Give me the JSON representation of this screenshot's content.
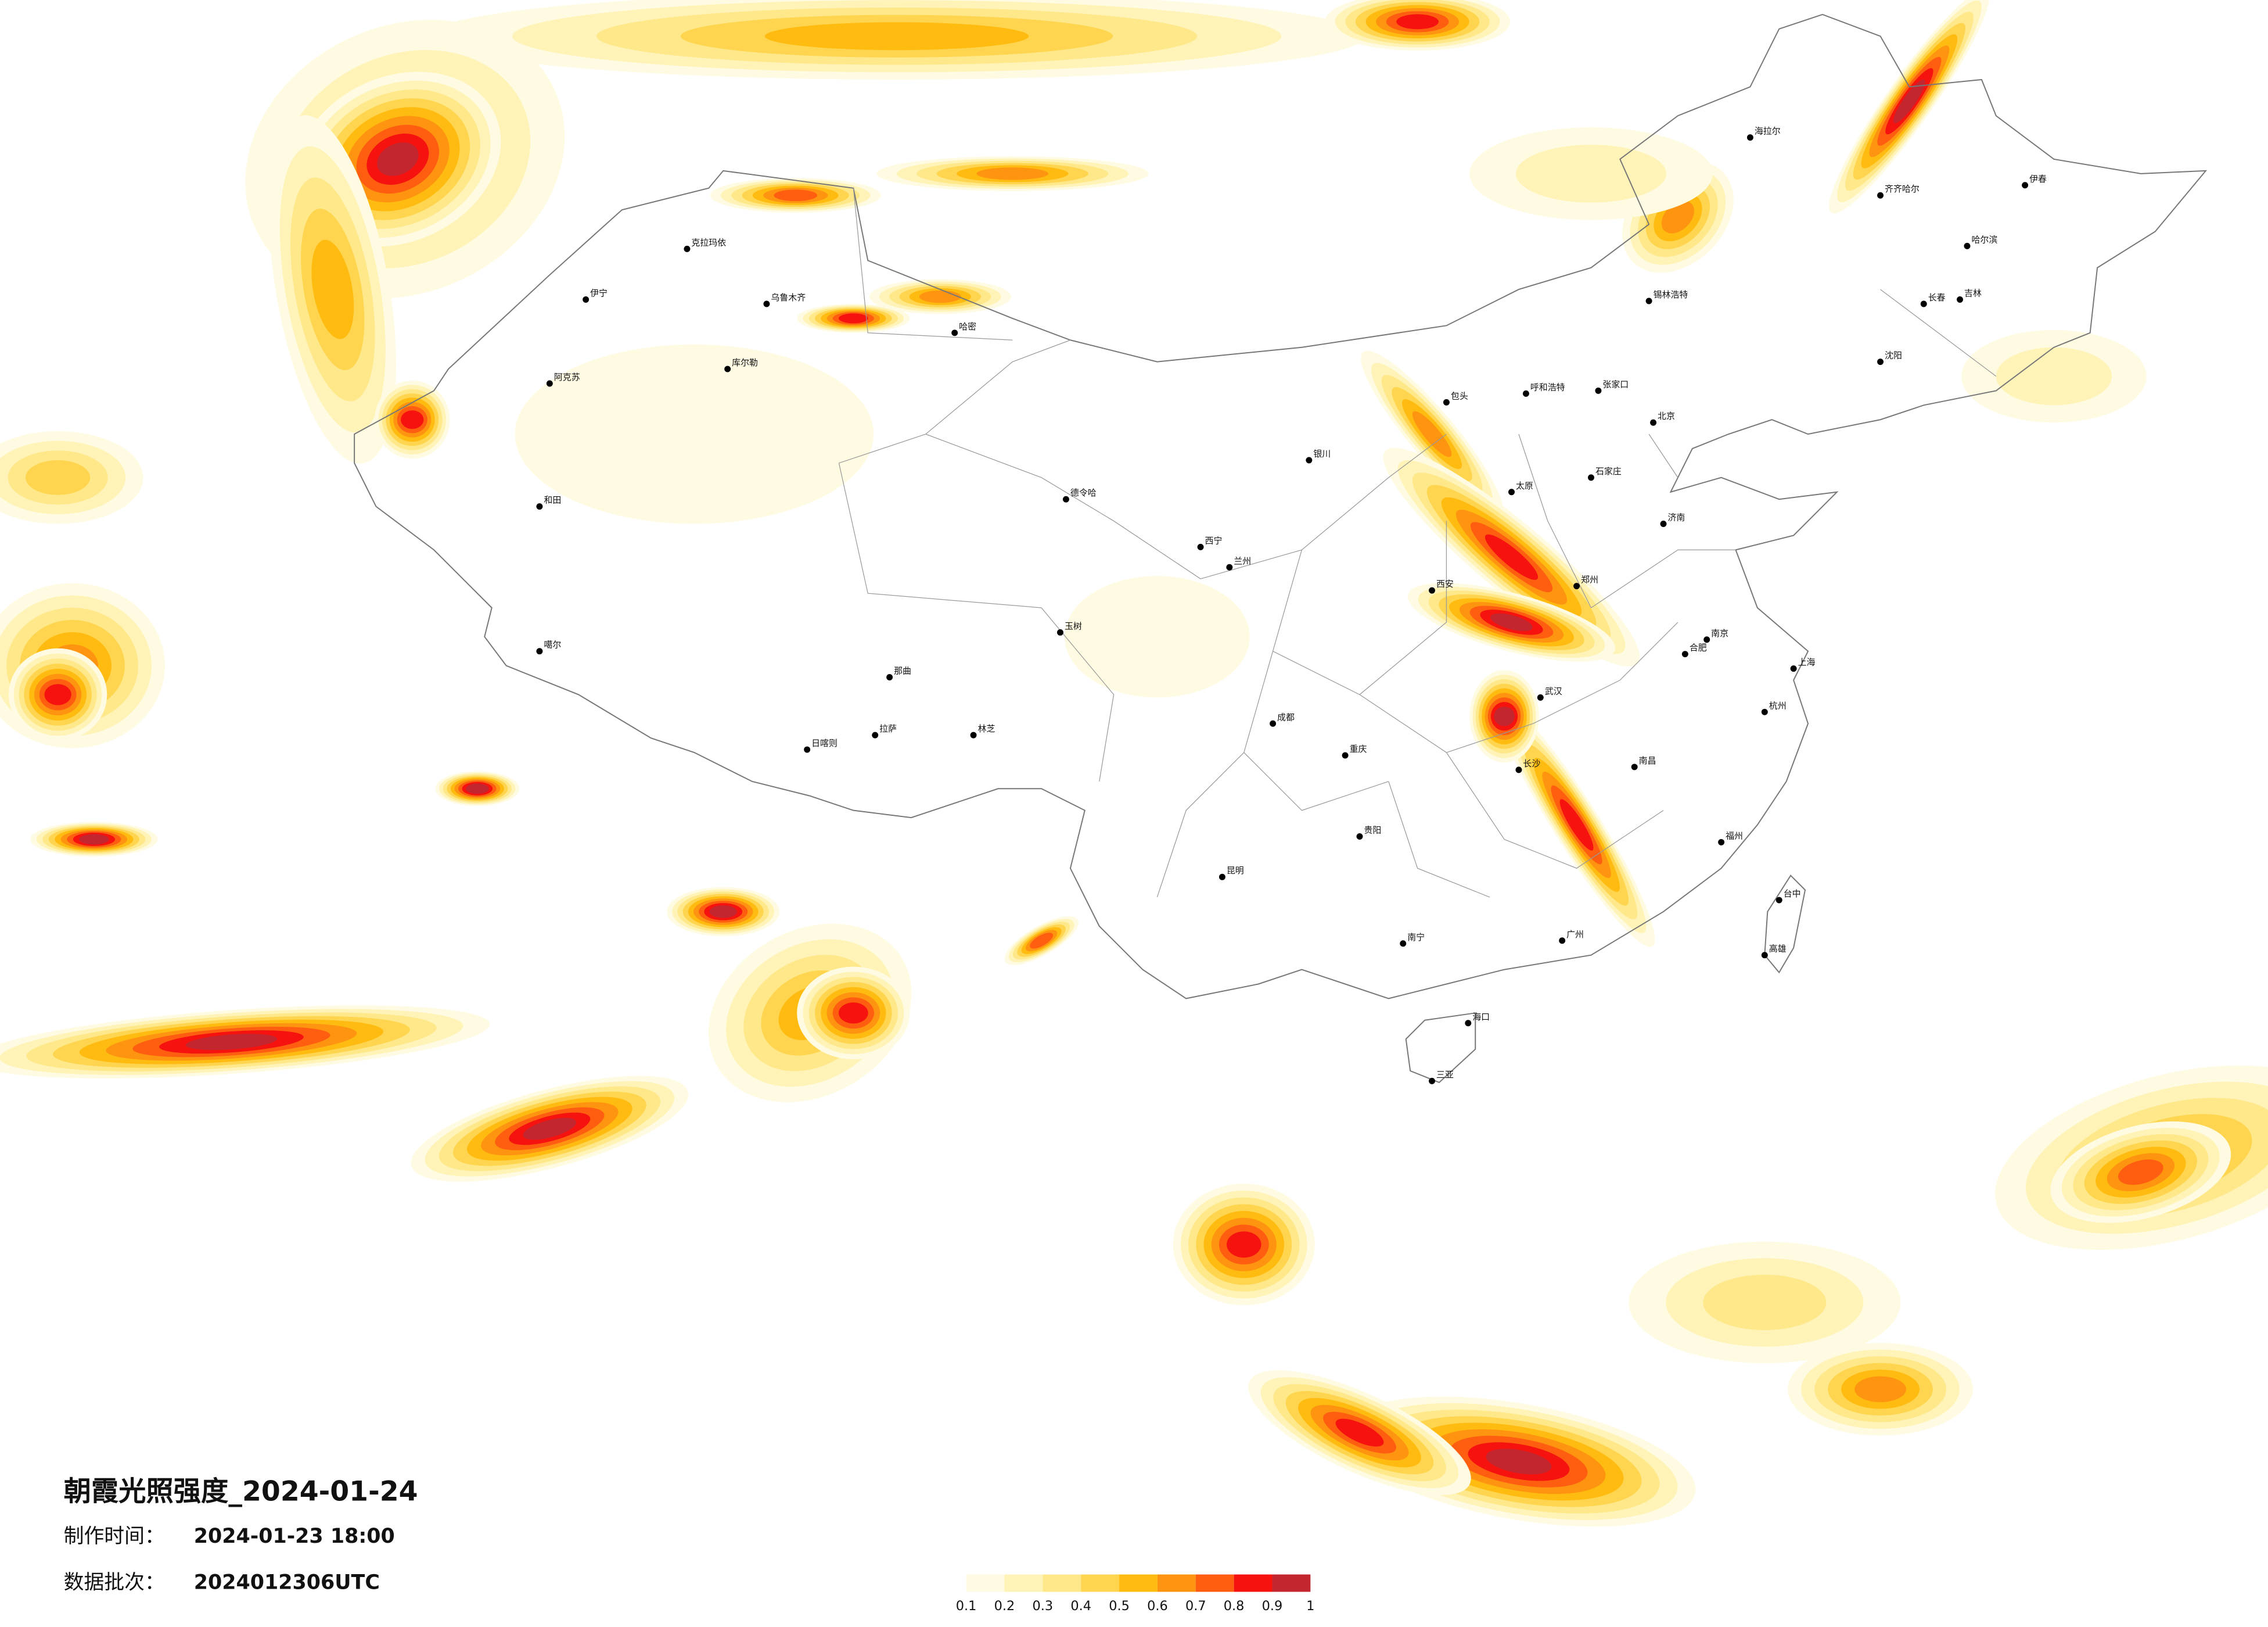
{
  "title": "朝霞光照强度_2024-01-24",
  "meta": [
    {
      "label": "制作时间：",
      "value": "2024-01-23 18:00"
    },
    {
      "label": "数据批次：",
      "value": "2024012306UTC"
    }
  ],
  "legend": {
    "colors": [
      "#fffbe3",
      "#fff3b8",
      "#ffe88a",
      "#ffd54f",
      "#ffbb10",
      "#ff9410",
      "#ff5e10",
      "#f5120f",
      "#c4262f"
    ],
    "ticks": [
      0.1,
      0.2,
      0.3,
      0.4,
      0.5,
      0.6,
      0.7,
      0.8,
      0.9,
      1
    ]
  },
  "cities": [
    "克拉玛依",
    "伊宁",
    "乌鲁木齐",
    "哈密",
    "库尔勒",
    "阿克苏",
    "和田",
    "噶尔",
    "日喀则",
    "拉萨",
    "那曲",
    "林芝",
    "玉树",
    "德令哈",
    "西宁",
    "兰州",
    "银川",
    "包头",
    "呼和浩特",
    "张家口",
    "北京",
    "石家庄",
    "太原",
    "郑州",
    "济南",
    "西安",
    "成都",
    "重庆",
    "贵阳",
    "昆明",
    "南宁",
    "海口",
    "三亚",
    "广州",
    "长沙",
    "南昌",
    "福州",
    "杭州",
    "上海",
    "南京",
    "武汉",
    "合肥",
    "哈尔滨",
    "长春",
    "沈阳",
    "齐齐哈尔",
    "伊春",
    "吉林",
    "海拉尔",
    "锡林浩特",
    "台中",
    "高雄"
  ]
}
